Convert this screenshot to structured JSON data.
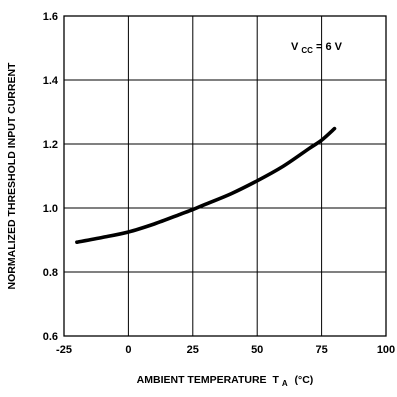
{
  "chart_data": {
    "type": "line",
    "title": "",
    "xlabel": "AMBIENT TEMPERATURE",
    "xlabel_symbol": "T",
    "xlabel_subscript": "A",
    "xlabel_unit": "(°C)",
    "ylabel": "NORMALIZED THRESHOLD INPUT CURRENT",
    "xlim": [
      -25,
      100
    ],
    "ylim": [
      0.6,
      1.6
    ],
    "x_ticks": [
      -25,
      0,
      25,
      50,
      75,
      100
    ],
    "x_tick_labels": [
      "-25",
      "0",
      "25",
      "50",
      "75",
      "100"
    ],
    "y_ticks": [
      0.6,
      0.8,
      1.0,
      1.2,
      1.4,
      1.6
    ],
    "y_tick_labels": [
      "0.6",
      "0.8",
      "1.0",
      "1.2",
      "1.4",
      "1.6"
    ],
    "grid": true,
    "annotation": {
      "prefix": "V",
      "subscript": "CC",
      "value": " = 6 V"
    },
    "series": [
      {
        "x": [
          -20,
          -10,
          0,
          10,
          20,
          25,
          30,
          40,
          50,
          60,
          70,
          75,
          80
        ],
        "y": [
          0.893,
          0.908,
          0.925,
          0.95,
          0.98,
          0.995,
          1.012,
          1.045,
          1.085,
          1.13,
          1.185,
          1.212,
          1.248
        ]
      }
    ],
    "line_color": "#000000"
  }
}
